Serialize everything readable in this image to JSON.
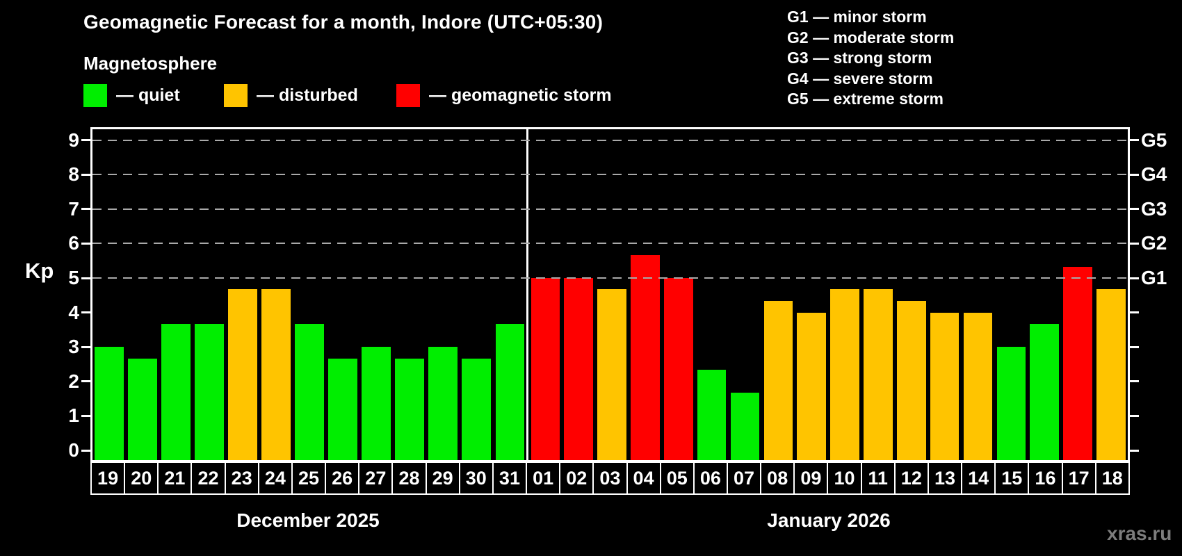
{
  "page": {
    "title": "Geomagnetic Forecast for a month, Indore (UTC+05:30)",
    "subtitle": "Magnetosphere",
    "watermark": "xras.ru"
  },
  "legend": {
    "items": [
      {
        "key": "quiet",
        "label": "— quiet"
      },
      {
        "key": "disturbed",
        "label": "— disturbed"
      },
      {
        "key": "storm",
        "label": "— geomagnetic storm"
      }
    ]
  },
  "g_legend": {
    "lines": [
      "G1 — minor storm",
      "G2 — moderate storm",
      "G3 — strong storm",
      "G4 — severe storm",
      "G5 — extreme storm"
    ]
  },
  "axes": {
    "y_label": "Kp",
    "y_ticks": [
      0,
      1,
      2,
      3,
      4,
      5,
      6,
      7,
      8,
      9
    ],
    "gridlines_kp": [
      5,
      6,
      7,
      8,
      9
    ],
    "right_labels": [
      {
        "kp": 9,
        "text": "G5"
      },
      {
        "kp": 8,
        "text": "G4"
      },
      {
        "kp": 7,
        "text": "G3"
      },
      {
        "kp": 6,
        "text": "G2"
      },
      {
        "kp": 5,
        "text": "G1"
      }
    ]
  },
  "chart_data": {
    "type": "bar",
    "title": "Geomagnetic Forecast for a month, Indore (UTC+05:30)",
    "ylabel": "Kp",
    "ylim": [
      0,
      9.4
    ],
    "grid": "dashed horizontal at Kp 5-9",
    "legend_position": "top-left",
    "status_colors": {
      "quiet": "#00ee00",
      "disturbed": "#ffc400",
      "storm": "#ff0000"
    },
    "groups": [
      {
        "month_label": "December 2025",
        "bars": [
          {
            "day": "19",
            "kp": 3.0,
            "status": "quiet"
          },
          {
            "day": "20",
            "kp": 2.67,
            "status": "quiet"
          },
          {
            "day": "21",
            "kp": 3.67,
            "status": "quiet"
          },
          {
            "day": "22",
            "kp": 3.67,
            "status": "quiet"
          },
          {
            "day": "23",
            "kp": 4.67,
            "status": "disturbed"
          },
          {
            "day": "24",
            "kp": 4.67,
            "status": "disturbed"
          },
          {
            "day": "25",
            "kp": 3.67,
            "status": "quiet"
          },
          {
            "day": "26",
            "kp": 2.67,
            "status": "quiet"
          },
          {
            "day": "27",
            "kp": 3.0,
            "status": "quiet"
          },
          {
            "day": "28",
            "kp": 2.67,
            "status": "quiet"
          },
          {
            "day": "29",
            "kp": 3.0,
            "status": "quiet"
          },
          {
            "day": "30",
            "kp": 2.67,
            "status": "quiet"
          },
          {
            "day": "31",
            "kp": 3.67,
            "status": "quiet"
          }
        ]
      },
      {
        "month_label": "January 2026",
        "bars": [
          {
            "day": "01",
            "kp": 5.0,
            "status": "storm"
          },
          {
            "day": "02",
            "kp": 5.0,
            "status": "storm"
          },
          {
            "day": "03",
            "kp": 4.67,
            "status": "disturbed"
          },
          {
            "day": "04",
            "kp": 5.67,
            "status": "storm"
          },
          {
            "day": "05",
            "kp": 5.0,
            "status": "storm"
          },
          {
            "day": "06",
            "kp": 2.33,
            "status": "quiet"
          },
          {
            "day": "07",
            "kp": 1.67,
            "status": "quiet"
          },
          {
            "day": "08",
            "kp": 4.33,
            "status": "disturbed"
          },
          {
            "day": "09",
            "kp": 4.0,
            "status": "disturbed"
          },
          {
            "day": "10",
            "kp": 4.67,
            "status": "disturbed"
          },
          {
            "day": "11",
            "kp": 4.67,
            "status": "disturbed"
          },
          {
            "day": "12",
            "kp": 4.33,
            "status": "disturbed"
          },
          {
            "day": "13",
            "kp": 4.0,
            "status": "disturbed"
          },
          {
            "day": "14",
            "kp": 4.0,
            "status": "disturbed"
          },
          {
            "day": "15",
            "kp": 3.0,
            "status": "quiet"
          },
          {
            "day": "16",
            "kp": 3.67,
            "status": "quiet"
          },
          {
            "day": "17",
            "kp": 5.33,
            "status": "storm"
          },
          {
            "day": "18",
            "kp": 4.67,
            "status": "disturbed"
          }
        ]
      }
    ]
  }
}
